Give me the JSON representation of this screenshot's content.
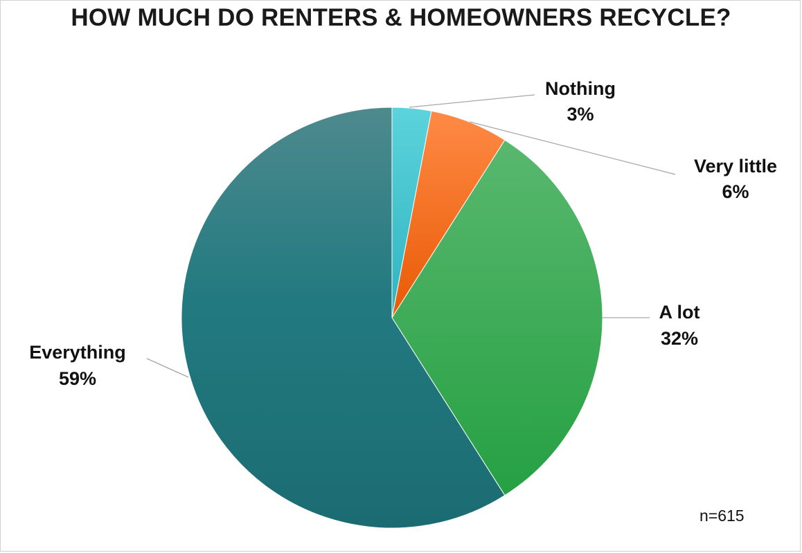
{
  "chart_data": {
    "type": "pie",
    "title": "HOW MUCH DO RENTERS & HOMEOWNERS RECYCLE?",
    "slices": [
      {
        "label": "Nothing",
        "value": 3,
        "value_label": "3%",
        "color": "#4cc4cf"
      },
      {
        "label": "Very little",
        "value": 6,
        "value_label": "6%",
        "color": "#ff6f1e"
      },
      {
        "label": "A lot",
        "value": 32,
        "value_label": "32%",
        "color": "#3bae53"
      },
      {
        "label": "Everything",
        "value": 59,
        "value_label": "59%",
        "color": "#2a7a80"
      }
    ],
    "start_angle_deg": 0,
    "direction": "clockwise",
    "legend": "none",
    "data_labels": "outside with leader lines",
    "note": "n=615"
  }
}
